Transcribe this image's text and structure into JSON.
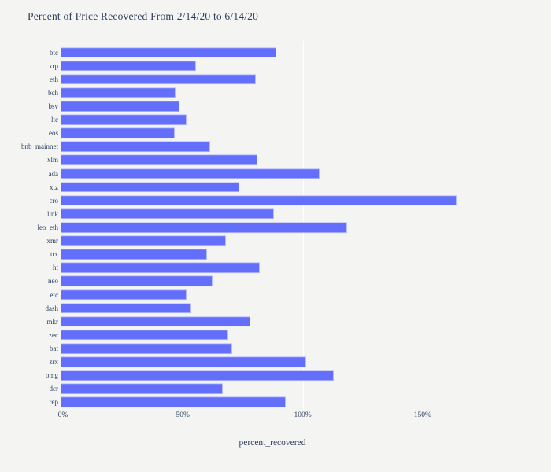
{
  "colors": {
    "background": "#f4f4f2",
    "bar": "#636efa",
    "bar_outline": "rgba(255,255,255,0.55)",
    "text": "#2a3f5f",
    "gridline": "#ffffff"
  },
  "chart_data": {
    "type": "bar",
    "orientation": "horizontal",
    "title": "Percent of Price Recovered From 2/14/20 to 6/14/20",
    "xlabel": "percent_recovered",
    "ylabel": "",
    "xlim": [
      0,
      198
    ],
    "grid": true,
    "x_ticks": [
      {
        "value": 0,
        "label": "0%"
      },
      {
        "value": 50,
        "label": "50%"
      },
      {
        "value": 100,
        "label": "100%"
      },
      {
        "value": 150,
        "label": "150%"
      }
    ],
    "categories": [
      "btc",
      "xrp",
      "eth",
      "bch",
      "bsv",
      "ltc",
      "eos",
      "bnb_mainnet",
      "xlm",
      "ada",
      "xtz",
      "cro",
      "link",
      "leo_eth",
      "xmr",
      "trx",
      "ht",
      "neo",
      "etc",
      "dash",
      "mkr",
      "zec",
      "bat",
      "zrx",
      "omg",
      "dcr",
      "rep"
    ],
    "values": [
      90,
      56.5,
      81.5,
      48,
      49.5,
      52.5,
      47.5,
      62.5,
      82,
      108,
      74.5,
      165,
      89,
      119.5,
      69,
      61,
      83,
      63.5,
      52.5,
      54.5,
      79,
      70,
      71.5,
      102.5,
      114,
      67.5,
      94
    ]
  }
}
